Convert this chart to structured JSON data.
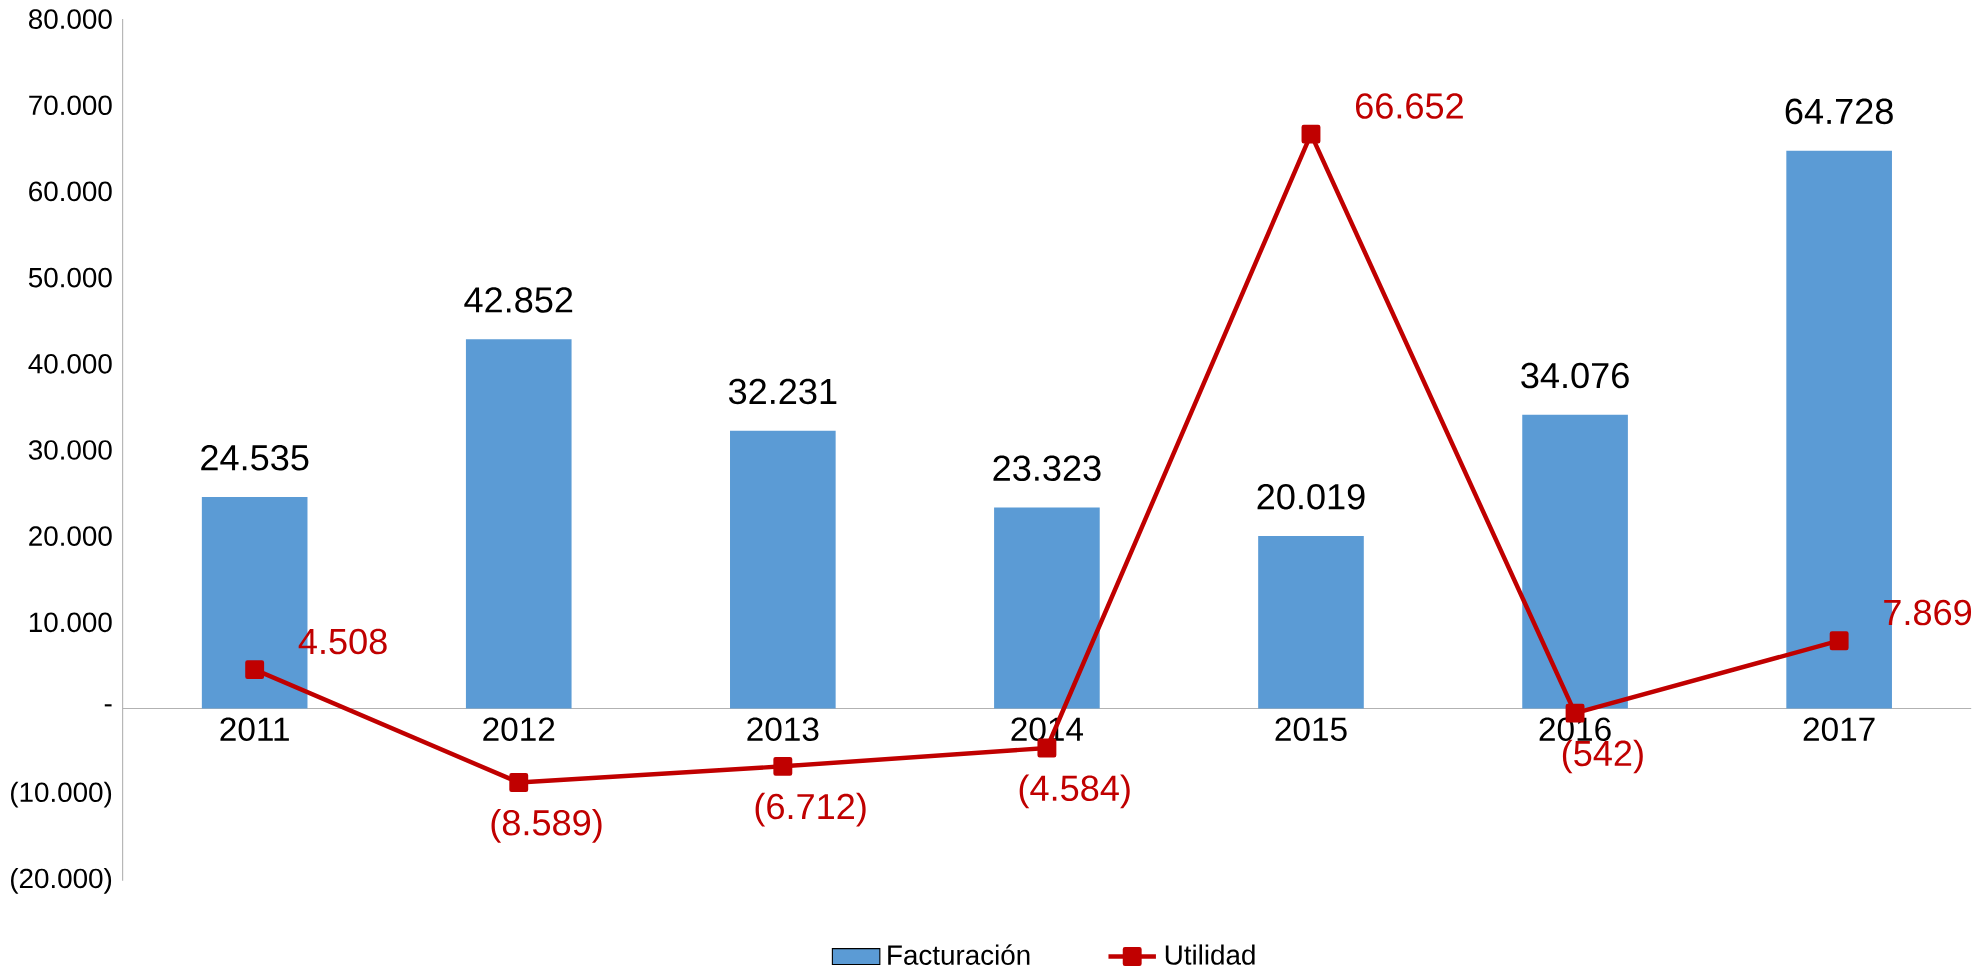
{
  "chart_data": {
    "type": "bar",
    "categories": [
      "2011",
      "2012",
      "2013",
      "2014",
      "2015",
      "2016",
      "2017"
    ],
    "series": [
      {
        "name": "Facturación",
        "color": "#5b9bd5",
        "values": [
          24535,
          42852,
          32231,
          23323,
          20019,
          34076,
          64728
        ],
        "value_labels": [
          "24.535",
          "42.852",
          "32.231",
          "23.323",
          "20.019",
          "34.076",
          "64.728"
        ]
      },
      {
        "name": "Utilidad",
        "type": "line",
        "color": "#c00000",
        "marker": "square",
        "values": [
          4508,
          -8589,
          -6712,
          -4584,
          66652,
          -542,
          7869
        ],
        "value_labels": [
          "4.508",
          "(8.589)",
          "(6.712)",
          "(4.584)",
          "66.652",
          "(542)",
          "7.869"
        ]
      }
    ],
    "ylim": [
      -20000,
      80000
    ],
    "yticks": [
      {
        "value": -20000,
        "label": "(20.000)"
      },
      {
        "value": -10000,
        "label": "(10.000)"
      },
      {
        "value": 0,
        "label": "-"
      },
      {
        "value": 10000,
        "label": "10.000"
      },
      {
        "value": 20000,
        "label": "20.000"
      },
      {
        "value": 30000,
        "label": "30.000"
      },
      {
        "value": 40000,
        "label": "40.000"
      },
      {
        "value": 50000,
        "label": "50.000"
      },
      {
        "value": 60000,
        "label": "60.000"
      },
      {
        "value": 70000,
        "label": "70.000"
      },
      {
        "value": 80000,
        "label": "80.000"
      }
    ],
    "grid": false,
    "legend": "bottom"
  }
}
